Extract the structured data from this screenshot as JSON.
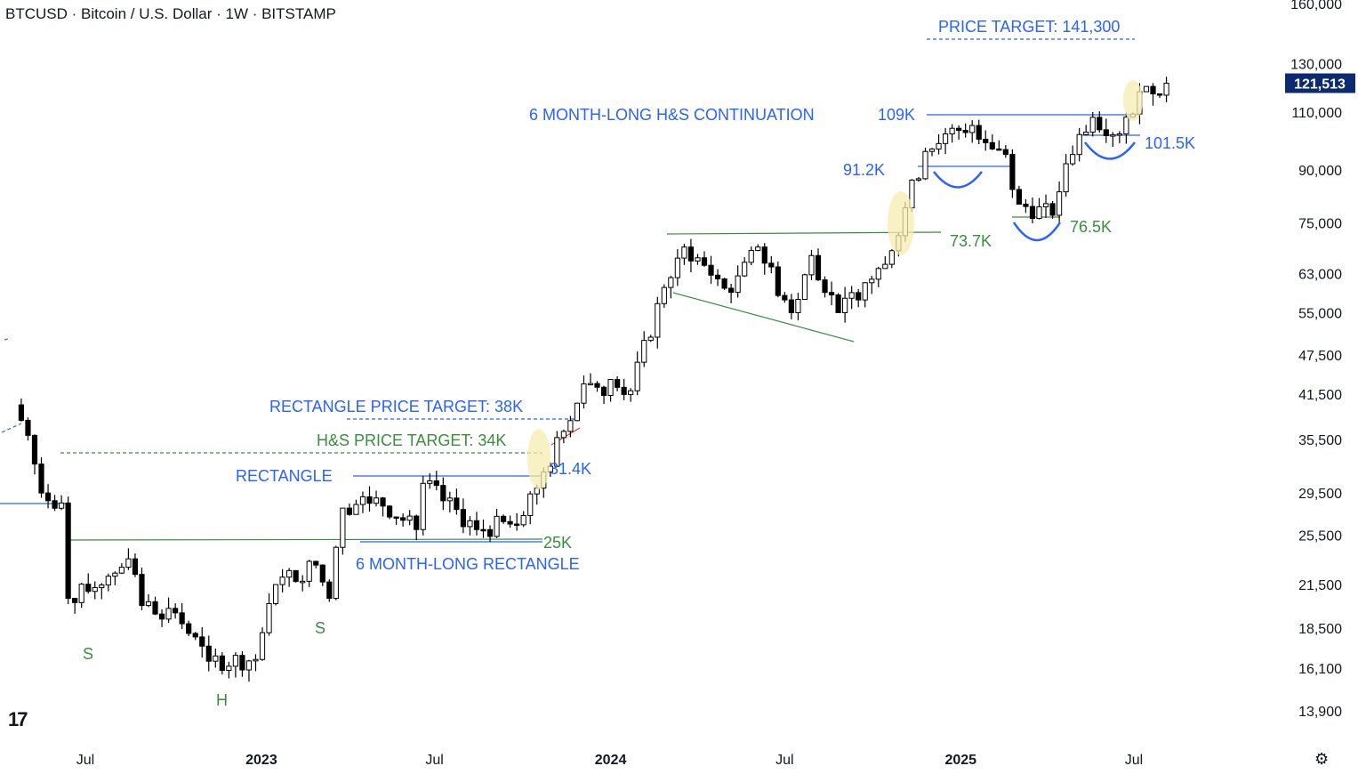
{
  "header": {
    "title": "BTCUSD · Bitcoin / U.S. Dollar · 1W · BITSTAMP"
  },
  "icons": {
    "logo": "tradingview-logo",
    "settings": "gear-icon"
  },
  "colors": {
    "up": "#ffffff",
    "down": "#000000",
    "blue": "#2962ff",
    "green": "#388e3c",
    "highlight": "#f5ecb0",
    "last_price_bg": "#0b2a6f"
  },
  "chart_data": {
    "type": "candlestick",
    "symbol": "BTCUSD",
    "interval": "1W",
    "exchange": "BITSTAMP",
    "scale": "log",
    "y_ticks": [
      160000,
      130000,
      110000,
      90000,
      75000,
      63000,
      55000,
      47500,
      41500,
      35500,
      29500,
      25500,
      21500,
      18500,
      16100,
      13900
    ],
    "y_tick_labels": [
      "160,000",
      "130,000",
      "110,000",
      "90,000",
      "75,000",
      "63,000",
      "55,000",
      "47,500",
      "41,500",
      "35,500",
      "29,500",
      "25,500",
      "21,500",
      "18,500",
      "16,100",
      "13,900"
    ],
    "x_ticks": [
      {
        "label": "Jul",
        "date": "2022-07-01",
        "bold": false
      },
      {
        "label": "2023",
        "date": "2023-01-01",
        "bold": true
      },
      {
        "label": "Jul",
        "date": "2023-07-01",
        "bold": false
      },
      {
        "label": "2024",
        "date": "2024-01-01",
        "bold": true
      },
      {
        "label": "Jul",
        "date": "2024-07-01",
        "bold": false
      },
      {
        "label": "2025",
        "date": "2025-01-01",
        "bold": true
      },
      {
        "label": "Jul",
        "date": "2025-07-01",
        "bold": false
      }
    ],
    "last_price": {
      "value": 121513,
      "label": "121,513"
    },
    "weekly_closes": [
      {
        "date": "2022-04-18",
        "close": 40000
      },
      {
        "date": "2022-05-02",
        "close": 36000
      },
      {
        "date": "2022-05-16",
        "close": 29500
      },
      {
        "date": "2022-06-06",
        "close": 28500
      },
      {
        "date": "2022-06-13",
        "close": 20500
      },
      {
        "date": "2022-07-04",
        "close": 21000
      },
      {
        "date": "2022-08-15",
        "close": 23500
      },
      {
        "date": "2022-08-29",
        "close": 20000
      },
      {
        "date": "2022-10-03",
        "close": 19500
      },
      {
        "date": "2022-11-07",
        "close": 16500
      },
      {
        "date": "2022-12-26",
        "close": 16600
      },
      {
        "date": "2023-01-16",
        "close": 21500
      },
      {
        "date": "2023-02-27",
        "close": 23000
      },
      {
        "date": "2023-03-13",
        "close": 20500
      },
      {
        "date": "2023-03-27",
        "close": 28000
      },
      {
        "date": "2023-05-01",
        "close": 29000
      },
      {
        "date": "2023-06-12",
        "close": 26000
      },
      {
        "date": "2023-06-19",
        "close": 30500
      },
      {
        "date": "2023-08-14",
        "close": 26000
      },
      {
        "date": "2023-09-18",
        "close": 26500
      },
      {
        "date": "2023-10-16",
        "close": 30000
      },
      {
        "date": "2023-11-13",
        "close": 36500
      },
      {
        "date": "2023-12-04",
        "close": 43000
      },
      {
        "date": "2024-01-08",
        "close": 42500
      },
      {
        "date": "2024-01-22",
        "close": 42000
      },
      {
        "date": "2024-02-26",
        "close": 60000
      },
      {
        "date": "2024-03-18",
        "close": 69000
      },
      {
        "date": "2024-05-06",
        "close": 59000
      },
      {
        "date": "2024-06-03",
        "close": 69000
      },
      {
        "date": "2024-07-08",
        "close": 55000
      },
      {
        "date": "2024-07-29",
        "close": 67000
      },
      {
        "date": "2024-08-26",
        "close": 55000
      },
      {
        "date": "2024-09-23",
        "close": 61000
      },
      {
        "date": "2024-10-14",
        "close": 65000
      },
      {
        "date": "2024-11-04",
        "close": 79000
      },
      {
        "date": "2024-11-25",
        "close": 96000
      },
      {
        "date": "2024-12-16",
        "close": 102000
      },
      {
        "date": "2025-01-13",
        "close": 105000
      },
      {
        "date": "2025-02-17",
        "close": 95000
      },
      {
        "date": "2025-03-03",
        "close": 80000
      },
      {
        "date": "2025-04-07",
        "close": 77000
      },
      {
        "date": "2025-04-21",
        "close": 92000
      },
      {
        "date": "2025-05-19",
        "close": 108000
      },
      {
        "date": "2025-06-16",
        "close": 102000
      },
      {
        "date": "2025-07-07",
        "close": 118000
      },
      {
        "date": "2025-08-04",
        "close": 121513
      }
    ],
    "annotations": [
      {
        "text": "PRICE TARGET: 141,300",
        "color": "blue"
      },
      {
        "text": "6 MONTH-LONG H&S CONTINUATION",
        "color": "blue"
      },
      {
        "text": "109K",
        "color": "blue"
      },
      {
        "text": "101.5K",
        "color": "blue"
      },
      {
        "text": "91.2K",
        "color": "blue"
      },
      {
        "text": "76.5K",
        "color": "green"
      },
      {
        "text": "73.7K",
        "color": "green"
      },
      {
        "text": "RECTANGLE PRICE TARGET: 38K",
        "color": "blue"
      },
      {
        "text": "H&S PRICE TARGET: 34K",
        "color": "green"
      },
      {
        "text": "RECTANGLE",
        "color": "blue"
      },
      {
        "text": "31.4K",
        "color": "blue"
      },
      {
        "text": "25K",
        "color": "green"
      },
      {
        "text": "6 MONTH-LONG RECTANGLE",
        "color": "blue"
      },
      {
        "text": "S",
        "color": "green"
      },
      {
        "text": "H",
        "color": "green"
      },
      {
        "text": "S",
        "color": "green"
      }
    ]
  }
}
